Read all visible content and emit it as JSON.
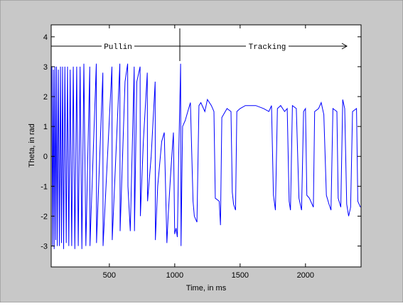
{
  "chart_data": {
    "type": "line",
    "xlabel": "Time, in ms",
    "ylabel": "Theta, in rad",
    "annotations": [
      "Pullin",
      "Tracking"
    ],
    "xlim": [
      55,
      2425
    ],
    "ylim": [
      -3.7,
      4.4
    ],
    "xticks": [
      500,
      1000,
      1500,
      2000
    ],
    "yticks": [
      -3,
      -2,
      -1,
      0,
      1,
      2,
      3,
      4
    ],
    "grid": false,
    "x": [
      60,
      66,
      72,
      78,
      84,
      90,
      96,
      102,
      110,
      118,
      126,
      134,
      142,
      150,
      160,
      170,
      180,
      190,
      200,
      212,
      224,
      236,
      250,
      262,
      276,
      290,
      305,
      320,
      350,
      352,
      400,
      402,
      450,
      452,
      520,
      522,
      580,
      582,
      620,
      640,
      642,
      660,
      690,
      692,
      710,
      735,
      737,
      760,
      790,
      792,
      820,
      850,
      852,
      870,
      900,
      920,
      940,
      950,
      970,
      990,
      1000,
      1010,
      1020,
      1030,
      1040,
      1045,
      1048,
      1060,
      1080,
      1100,
      1120,
      1140,
      1150,
      1170,
      1185,
      1200,
      1230,
      1250,
      1280,
      1300,
      1310,
      1340,
      1350,
      1360,
      1400,
      1430,
      1440,
      1450,
      1465,
      1475,
      1500,
      1540,
      1580,
      1620,
      1680,
      1720,
      1740,
      1755,
      1770,
      1785,
      1810,
      1840,
      1860,
      1875,
      1885,
      1900,
      1930,
      1950,
      1970,
      1985,
      2000,
      2010,
      2030,
      2060,
      2070,
      2100,
      2120,
      2140,
      2160,
      2180,
      2195,
      2210,
      2240,
      2250,
      2270,
      2285,
      2300,
      2315,
      2330,
      2345,
      2360,
      2390,
      2400,
      2420
    ],
    "series": [
      {
        "color": "#0000ff",
        "values": [
          3,
          -3,
          2.9,
          -3.1,
          3,
          -2.8,
          3,
          -3,
          2.9,
          -3,
          3,
          -2.9,
          3,
          -3.1,
          3,
          -2.9,
          3,
          -3,
          2.9,
          -3,
          3,
          -3.1,
          3,
          -3,
          3,
          -3.1,
          3.1,
          -3,
          3,
          -3,
          3.1,
          -2.9,
          2.8,
          -3,
          3,
          -2.8,
          3.1,
          -2.5,
          2.5,
          3.1,
          -1,
          -2.5,
          3,
          -2.5,
          2.5,
          3,
          -2,
          0.5,
          2.8,
          -1.5,
          0,
          2.5,
          -2.8,
          -1,
          0.5,
          0.8,
          -2.9,
          -2,
          -0.5,
          0.8,
          -2.6,
          -2.4,
          -2.7,
          0,
          2,
          3.1,
          -3,
          1,
          1.2,
          1.5,
          1.8,
          -1.5,
          -2,
          -2.2,
          1.7,
          1.8,
          1.5,
          1.9,
          1.7,
          1.5,
          -1.4,
          -1.5,
          -2.3,
          1.3,
          1.6,
          1.5,
          -1.2,
          -1.6,
          -1.8,
          1.5,
          1.6,
          1.7,
          1.7,
          1.7,
          1.6,
          1.5,
          1.7,
          -1.3,
          -1.8,
          1.6,
          1.7,
          1.5,
          1.6,
          -1.5,
          -1.8,
          1.7,
          1.6,
          -1.4,
          -1.8,
          1.5,
          1.6,
          -1.3,
          -1.4,
          -1.7,
          1.5,
          1.6,
          1.8,
          1.4,
          -1.3,
          -1.6,
          -1.8,
          1.6,
          1.5,
          -1.4,
          -1.7,
          1.9,
          1.6,
          -1.6,
          -2,
          -1.7,
          1.5,
          1.6,
          -1.5,
          -1.7
        ]
      }
    ]
  }
}
